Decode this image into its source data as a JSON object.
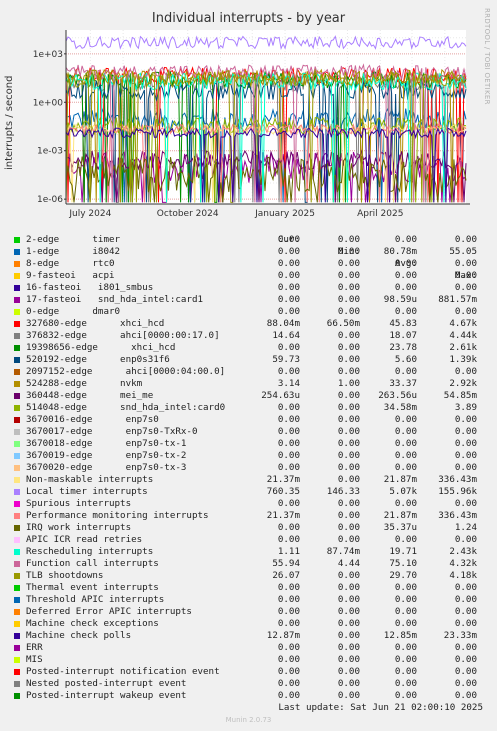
{
  "title": "Individual interrupts - by year",
  "side_label": "RRDTOOL / TOBI OETIKER",
  "footer": "Last update: Sat Jun 21 02:00:10 2025",
  "munin": "Munin 2.0.73",
  "legend_headers": {
    "cur": "Cur:",
    "min": "Min:",
    "avg": "Avg:",
    "max": "Max:"
  },
  "chart_data": {
    "type": "line",
    "title": "Individual interrupts - by year",
    "ylabel": "interrupts / second",
    "y_scale": "log",
    "ylim": [
      5e-07,
      30000
    ],
    "y_ticks": [
      "1e-06",
      "1e-03",
      "1e+00",
      "1e+03"
    ],
    "y_tick_values": [
      1e-06,
      0.001,
      1,
      1000
    ],
    "x_ticks": [
      "July 2024",
      "October 2024",
      "January 2025",
      "April 2025"
    ],
    "x_tick_values": [
      "2024-07-01",
      "2024-10-01",
      "2025-01-01",
      "2025-04-01"
    ],
    "x_range": [
      "2024-06-08",
      "2025-06-21"
    ],
    "grid": true,
    "series": [
      {
        "name": "2-edge      timer",
        "color": "#00cc00",
        "cur": "0.00",
        "min": "0.00",
        "avg": "0.00",
        "max": "0.00"
      },
      {
        "name": "1-edge      i8042",
        "color": "#0066b3",
        "cur": "0.00",
        "min": "0.00",
        "avg": "80.78m",
        "max": "55.05"
      },
      {
        "name": "8-edge      rtc0",
        "color": "#ff8000",
        "cur": "0.00",
        "min": "0.00",
        "avg": "0.00",
        "max": "0.00"
      },
      {
        "name": "9-fasteoi   acpi",
        "color": "#ffcc00",
        "cur": "0.00",
        "min": "0.00",
        "avg": "0.00",
        "max": "0.00"
      },
      {
        "name": "16-fasteoi   i801_smbus",
        "color": "#330099",
        "cur": "0.00",
        "min": "0.00",
        "avg": "0.00",
        "max": "0.00"
      },
      {
        "name": "17-fasteoi   snd_hda_intel:card1",
        "color": "#990099",
        "cur": "0.00",
        "min": "0.00",
        "avg": "98.59u",
        "max": "881.57m"
      },
      {
        "name": "0-edge      dmar0",
        "color": "#ccff00",
        "cur": "0.00",
        "min": "0.00",
        "avg": "0.00",
        "max": "0.00"
      },
      {
        "name": "327680-edge      xhci_hcd",
        "color": "#ff0000",
        "cur": "88.04m",
        "min": "66.50m",
        "avg": "45.83",
        "max": "4.67k"
      },
      {
        "name": "376832-edge      ahci[0000:00:17.0]",
        "color": "#808080",
        "cur": "14.64",
        "min": "0.00",
        "avg": "18.07",
        "max": "4.44k"
      },
      {
        "name": "19398656-edge      xhci_hcd",
        "color": "#008f00",
        "cur": "0.00",
        "min": "0.00",
        "avg": "23.78",
        "max": "2.61k"
      },
      {
        "name": "520192-edge      enp0s31f6",
        "color": "#00487d",
        "cur": "59.73",
        "min": "0.00",
        "avg": "5.60",
        "max": "1.39k"
      },
      {
        "name": "2097152-edge      ahci[0000:04:00.0]",
        "color": "#b35a00",
        "cur": "0.00",
        "min": "0.00",
        "avg": "0.00",
        "max": "0.00"
      },
      {
        "name": "524288-edge      nvkm",
        "color": "#b38f00",
        "cur": "3.14",
        "min": "1.00",
        "avg": "33.37",
        "max": "2.92k"
      },
      {
        "name": "360448-edge      mei_me",
        "color": "#6b006b",
        "cur": "254.63u",
        "min": "0.00",
        "avg": "263.56u",
        "max": "54.85m"
      },
      {
        "name": "514048-edge      snd_hda_intel:card0",
        "color": "#8fb300",
        "cur": "0.00",
        "min": "0.00",
        "avg": "34.58m",
        "max": "3.89"
      },
      {
        "name": "3670016-edge      enp7s0",
        "color": "#b30000",
        "cur": "0.00",
        "min": "0.00",
        "avg": "0.00",
        "max": "0.00"
      },
      {
        "name": "3670017-edge      enp7s0-TxRx-0",
        "color": "#bebebe",
        "cur": "0.00",
        "min": "0.00",
        "avg": "0.00",
        "max": "0.00"
      },
      {
        "name": "3670018-edge      enp7s0-tx-1",
        "color": "#80ff80",
        "cur": "0.00",
        "min": "0.00",
        "avg": "0.00",
        "max": "0.00"
      },
      {
        "name": "3670019-edge      enp7s0-tx-2",
        "color": "#80c9ff",
        "cur": "0.00",
        "min": "0.00",
        "avg": "0.00",
        "max": "0.00"
      },
      {
        "name": "3670020-edge      enp7s0-tx-3",
        "color": "#ffc080",
        "cur": "0.00",
        "min": "0.00",
        "avg": "0.00",
        "max": "0.00"
      },
      {
        "name": "Non-maskable interrupts",
        "color": "#ffe680",
        "cur": "21.37m",
        "min": "0.00",
        "avg": "21.87m",
        "max": "336.43m"
      },
      {
        "name": "Local timer interrupts",
        "color": "#aa80ff",
        "cur": "760.35",
        "min": "146.33",
        "avg": "5.07k",
        "max": "155.96k"
      },
      {
        "name": "Spurious interrupts",
        "color": "#ee00cc",
        "cur": "0.00",
        "min": "0.00",
        "avg": "0.00",
        "max": "0.00"
      },
      {
        "name": "Performance monitoring interrupts",
        "color": "#ff8080",
        "cur": "21.37m",
        "min": "0.00",
        "avg": "21.87m",
        "max": "336.43m"
      },
      {
        "name": "IRQ work interrupts",
        "color": "#666600",
        "cur": "0.00",
        "min": "0.00",
        "avg": "35.37u",
        "max": "1.24"
      },
      {
        "name": "APIC ICR read retries",
        "color": "#ffbfff",
        "cur": "0.00",
        "min": "0.00",
        "avg": "0.00",
        "max": "0.00"
      },
      {
        "name": "Rescheduling interrupts",
        "color": "#00ffcc",
        "cur": "1.11",
        "min": "87.74m",
        "avg": "19.71",
        "max": "2.43k"
      },
      {
        "name": "Function call interrupts",
        "color": "#cc6699",
        "cur": "55.94",
        "min": "4.44",
        "avg": "75.10",
        "max": "4.32k"
      },
      {
        "name": "TLB shootdowns",
        "color": "#999900",
        "cur": "26.07",
        "min": "0.00",
        "avg": "29.70",
        "max": "4.18k"
      },
      {
        "name": "Thermal event interrupts",
        "color": "#00cc00",
        "cur": "0.00",
        "min": "0.00",
        "avg": "0.00",
        "max": "0.00"
      },
      {
        "name": "Threshold APIC interrupts",
        "color": "#0066b3",
        "cur": "0.00",
        "min": "0.00",
        "avg": "0.00",
        "max": "0.00"
      },
      {
        "name": "Deferred Error APIC interrupts",
        "color": "#ff8000",
        "cur": "0.00",
        "min": "0.00",
        "avg": "0.00",
        "max": "0.00"
      },
      {
        "name": "Machine check exceptions",
        "color": "#ffcc00",
        "cur": "0.00",
        "min": "0.00",
        "avg": "0.00",
        "max": "0.00"
      },
      {
        "name": "Machine check polls",
        "color": "#330099",
        "cur": "12.87m",
        "min": "0.00",
        "avg": "12.85m",
        "max": "23.33m"
      },
      {
        "name": "ERR",
        "color": "#990099",
        "cur": "0.00",
        "min": "0.00",
        "avg": "0.00",
        "max": "0.00"
      },
      {
        "name": "MIS",
        "color": "#ccff00",
        "cur": "0.00",
        "min": "0.00",
        "avg": "0.00",
        "max": "0.00"
      },
      {
        "name": "Posted-interrupt notification event",
        "color": "#ff0000",
        "cur": "0.00",
        "min": "0.00",
        "avg": "0.00",
        "max": "0.00"
      },
      {
        "name": "Nested posted-interrupt event",
        "color": "#808080",
        "cur": "0.00",
        "min": "0.00",
        "avg": "0.00",
        "max": "0.00"
      },
      {
        "name": "Posted-interrupt wakeup event",
        "color": "#008f00",
        "cur": "0.00",
        "min": "0.00",
        "avg": "0.00",
        "max": "0.00"
      }
    ]
  }
}
